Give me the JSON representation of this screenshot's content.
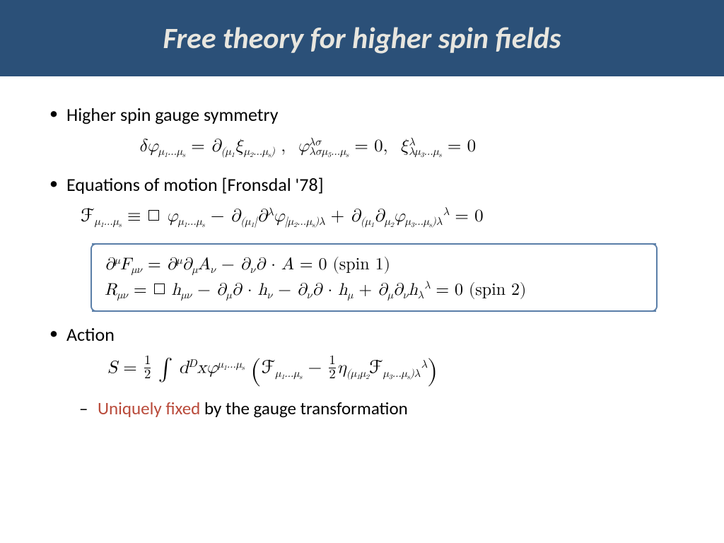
{
  "header": {
    "title": "Free theory for higher spin fields",
    "bg_color": "#2b5078",
    "text_color": "#e8e6df",
    "title_fontsize": 42,
    "title_fontstyle": "bold italic"
  },
  "body": {
    "bg_color": "#ffffff",
    "text_color": "#000000",
    "highlight_color": "#b94a3a",
    "bullet_fontsize": 26,
    "sub_bullet_fontsize": 25,
    "eq_fontsize": 25,
    "boxed_eq_fontsize": 24,
    "box_border_color": "#5a7ea8"
  },
  "bullets": {
    "b1": "Higher spin gauge symmetry",
    "b2": "Equations of motion [Fronsdal '78]",
    "b3": "Action",
    "sub1_highlight": "Uniquely fixed",
    "sub1_rest": " by the gauge transformation"
  },
  "equations": {
    "eq1_html": "<span class='it'>δφ</span><sub>μ<sub>1</sub>…μ<sub>s</sub></sub> = <span class='it'>∂</span><sub>(μ<sub>1</sub></sub><span class='it'>ξ</span><sub>μ<sub>2</sub>…μ<sub>s</sub>)</sub> ,&nbsp;&nbsp;<span class='it'>φ</span><sup>λσ</sup><sub style='margin-left:-1.1em'>λσμ<sub>5</sub>…μ<sub>s</sub></sub> = 0,&nbsp;&nbsp;<span class='it'>ξ</span><sup>λ</sup><sub style='margin-left:-0.55em'>λμ<sub>3</sub>…μ<sub>s</sub></sub> = 0",
    "eq2_html": "<span class='scr'>ℱ</span><sub>μ<sub>1</sub>…μ<sub>s</sub></sub> ≡ <span class='box-op'></span> <span class='it'>φ</span><sub>μ<sub>1</sub>…μ<sub>s</sub></sub> − <span class='it'>∂</span><sub>(μ<sub>1</sub>|</sub><span class='it'>∂</span><sup>λ</sup><span class='it'>φ</span><sub>|μ<sub>2</sub>…μ<sub>s</sub>)λ</sub> + <span class='it'>∂</span><sub>(μ<sub>1</sub></sub><span class='it'>∂</span><sub>μ<sub>2</sub></sub><span class='it'>φ</span><sub>μ<sub>3</sub>…μ<sub>s</sub>)λ</sub><sup style='margin-left:0.1em'>λ</sup> = 0",
    "eq3a_html": "<span class='it'>∂</span><sup>μ</sup><span class='it'>F</span><sub>μν</sub> = <span class='it'>∂</span><sup>μ</sup><span class='it'>∂</span><sub>μ</sub><span class='it'>A</span><sub>ν</sub> − <span class='it'>∂</span><sub>ν</sub><span class='it'>∂</span> · <span class='it'>A</span> = 0 <span class='rm'>(spin 1)</span>",
    "eq3b_html": "<span class='it'>R</span><sub>μν</sub> = <span class='box-op'></span> <span class='it'>h</span><sub>μν</sub> − <span class='it'>∂</span><sub>μ</sub><span class='it'>∂</span> · <span class='it'>h</span><sub>ν</sub> − <span class='it'>∂</span><sub>ν</sub><span class='it'>∂</span> · <span class='it'>h</span><sub>μ</sub> + <span class='it'>∂</span><sub>μ</sub><span class='it'>∂</span><sub>ν</sub><span class='it'>h</span><sub>λ</sub><sup style='margin-left:0.1em'>λ</sup> = 0 <span class='rm'>(spin 2)</span>",
    "eq4_html": "<span class='it'>S</span> = <span class='frac'><span class='num'>1</span><span class='den'>2</span></span> <span class='int'>∫</span> <span class='it'>d</span><sup>D</sup><span class='it'>xφ</span><sup>μ<sub>1</sub>…μ<sub>s</sub></sup> <span class='bigparen'>(</span><span class='scr'>ℱ</span><sub>μ<sub>1</sub>…μ<sub>s</sub></sub> − <span class='frac'><span class='num'>1</span><span class='den'>2</span></span><span class='it'>η</span><sub>(μ<sub>1</sub>μ<sub>2</sub></sub><span class='scr'>ℱ</span><sub>μ<sub>3</sub>…μ<sub>s</sub>)λ</sub><sup style='margin-left:0.1em'>λ</sup><span class='bigparen'>)</span>"
  }
}
